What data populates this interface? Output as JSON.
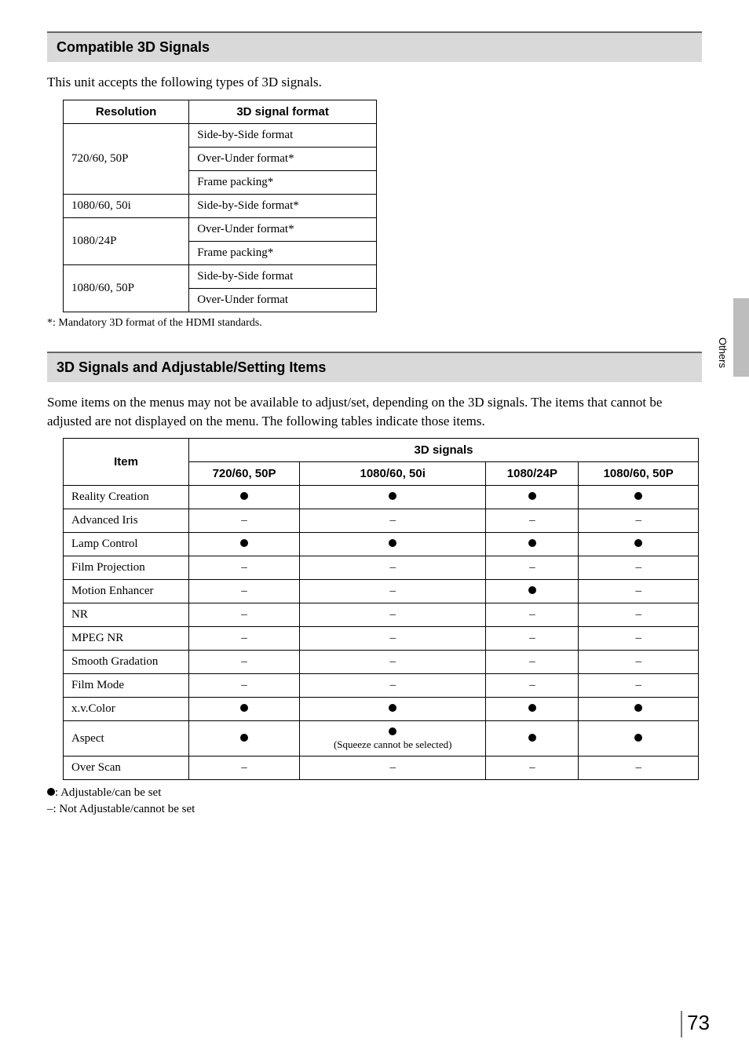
{
  "side_tab_label": "Others",
  "page_number": "73",
  "section1": {
    "title": "Compatible 3D Signals",
    "intro": "This unit accepts the following types of 3D signals.",
    "headers": {
      "col1": "Resolution",
      "col2": "3D signal format"
    },
    "rows": [
      {
        "resolution": "720/60, 50P",
        "formats": [
          "Side-by-Side format",
          "Over-Under format*",
          "Frame packing*"
        ]
      },
      {
        "resolution": "1080/60, 50i",
        "formats": [
          "Side-by-Side format*"
        ]
      },
      {
        "resolution": "1080/24P",
        "formats": [
          "Over-Under format*",
          "Frame packing*"
        ]
      },
      {
        "resolution": "1080/60, 50P",
        "formats": [
          "Side-by-Side format",
          "Over-Under format"
        ]
      }
    ],
    "footnote": "*: Mandatory 3D format of the HDMI standards."
  },
  "section2": {
    "title": "3D Signals and Adjustable/Setting Items",
    "intro": "Some items on the menus may not be available to adjust/set, depending on the 3D signals. The items that cannot be adjusted are not displayed on the menu. The following tables indicate those items.",
    "headers": {
      "item": "Item",
      "group": "3D signals",
      "cols": [
        "720/60, 50P",
        "1080/60, 50i",
        "1080/24P",
        "1080/60, 50P"
      ]
    },
    "rows": [
      {
        "name": "Reality Creation",
        "vals": [
          "dot",
          "dot",
          "dot",
          "dot"
        ]
      },
      {
        "name": "Advanced Iris",
        "vals": [
          "dash",
          "dash",
          "dash",
          "dash"
        ]
      },
      {
        "name": "Lamp Control",
        "vals": [
          "dot",
          "dot",
          "dot",
          "dot"
        ]
      },
      {
        "name": "Film Projection",
        "vals": [
          "dash",
          "dash",
          "dash",
          "dash"
        ]
      },
      {
        "name": "Motion Enhancer",
        "vals": [
          "dash",
          "dash",
          "dot",
          "dash"
        ]
      },
      {
        "name": "NR",
        "vals": [
          "dash",
          "dash",
          "dash",
          "dash"
        ]
      },
      {
        "name": "MPEG NR",
        "vals": [
          "dash",
          "dash",
          "dash",
          "dash"
        ]
      },
      {
        "name": "Smooth Gradation",
        "vals": [
          "dash",
          "dash",
          "dash",
          "dash"
        ]
      },
      {
        "name": "Film Mode",
        "vals": [
          "dash",
          "dash",
          "dash",
          "dash"
        ]
      },
      {
        "name": "x.v.Color",
        "vals": [
          "dot",
          "dot",
          "dot",
          "dot"
        ]
      },
      {
        "name": "Aspect",
        "vals": [
          "dot",
          "dot_sq",
          "dot",
          "dot"
        ]
      },
      {
        "name": "Over Scan",
        "vals": [
          "dash",
          "dash",
          "dash",
          "dash"
        ]
      }
    ],
    "squeeze_note": "(Squeeze cannot be selected)",
    "legend_dot": ": Adjustable/can be set",
    "legend_dash": "–: Not Adjustable/cannot be set"
  }
}
